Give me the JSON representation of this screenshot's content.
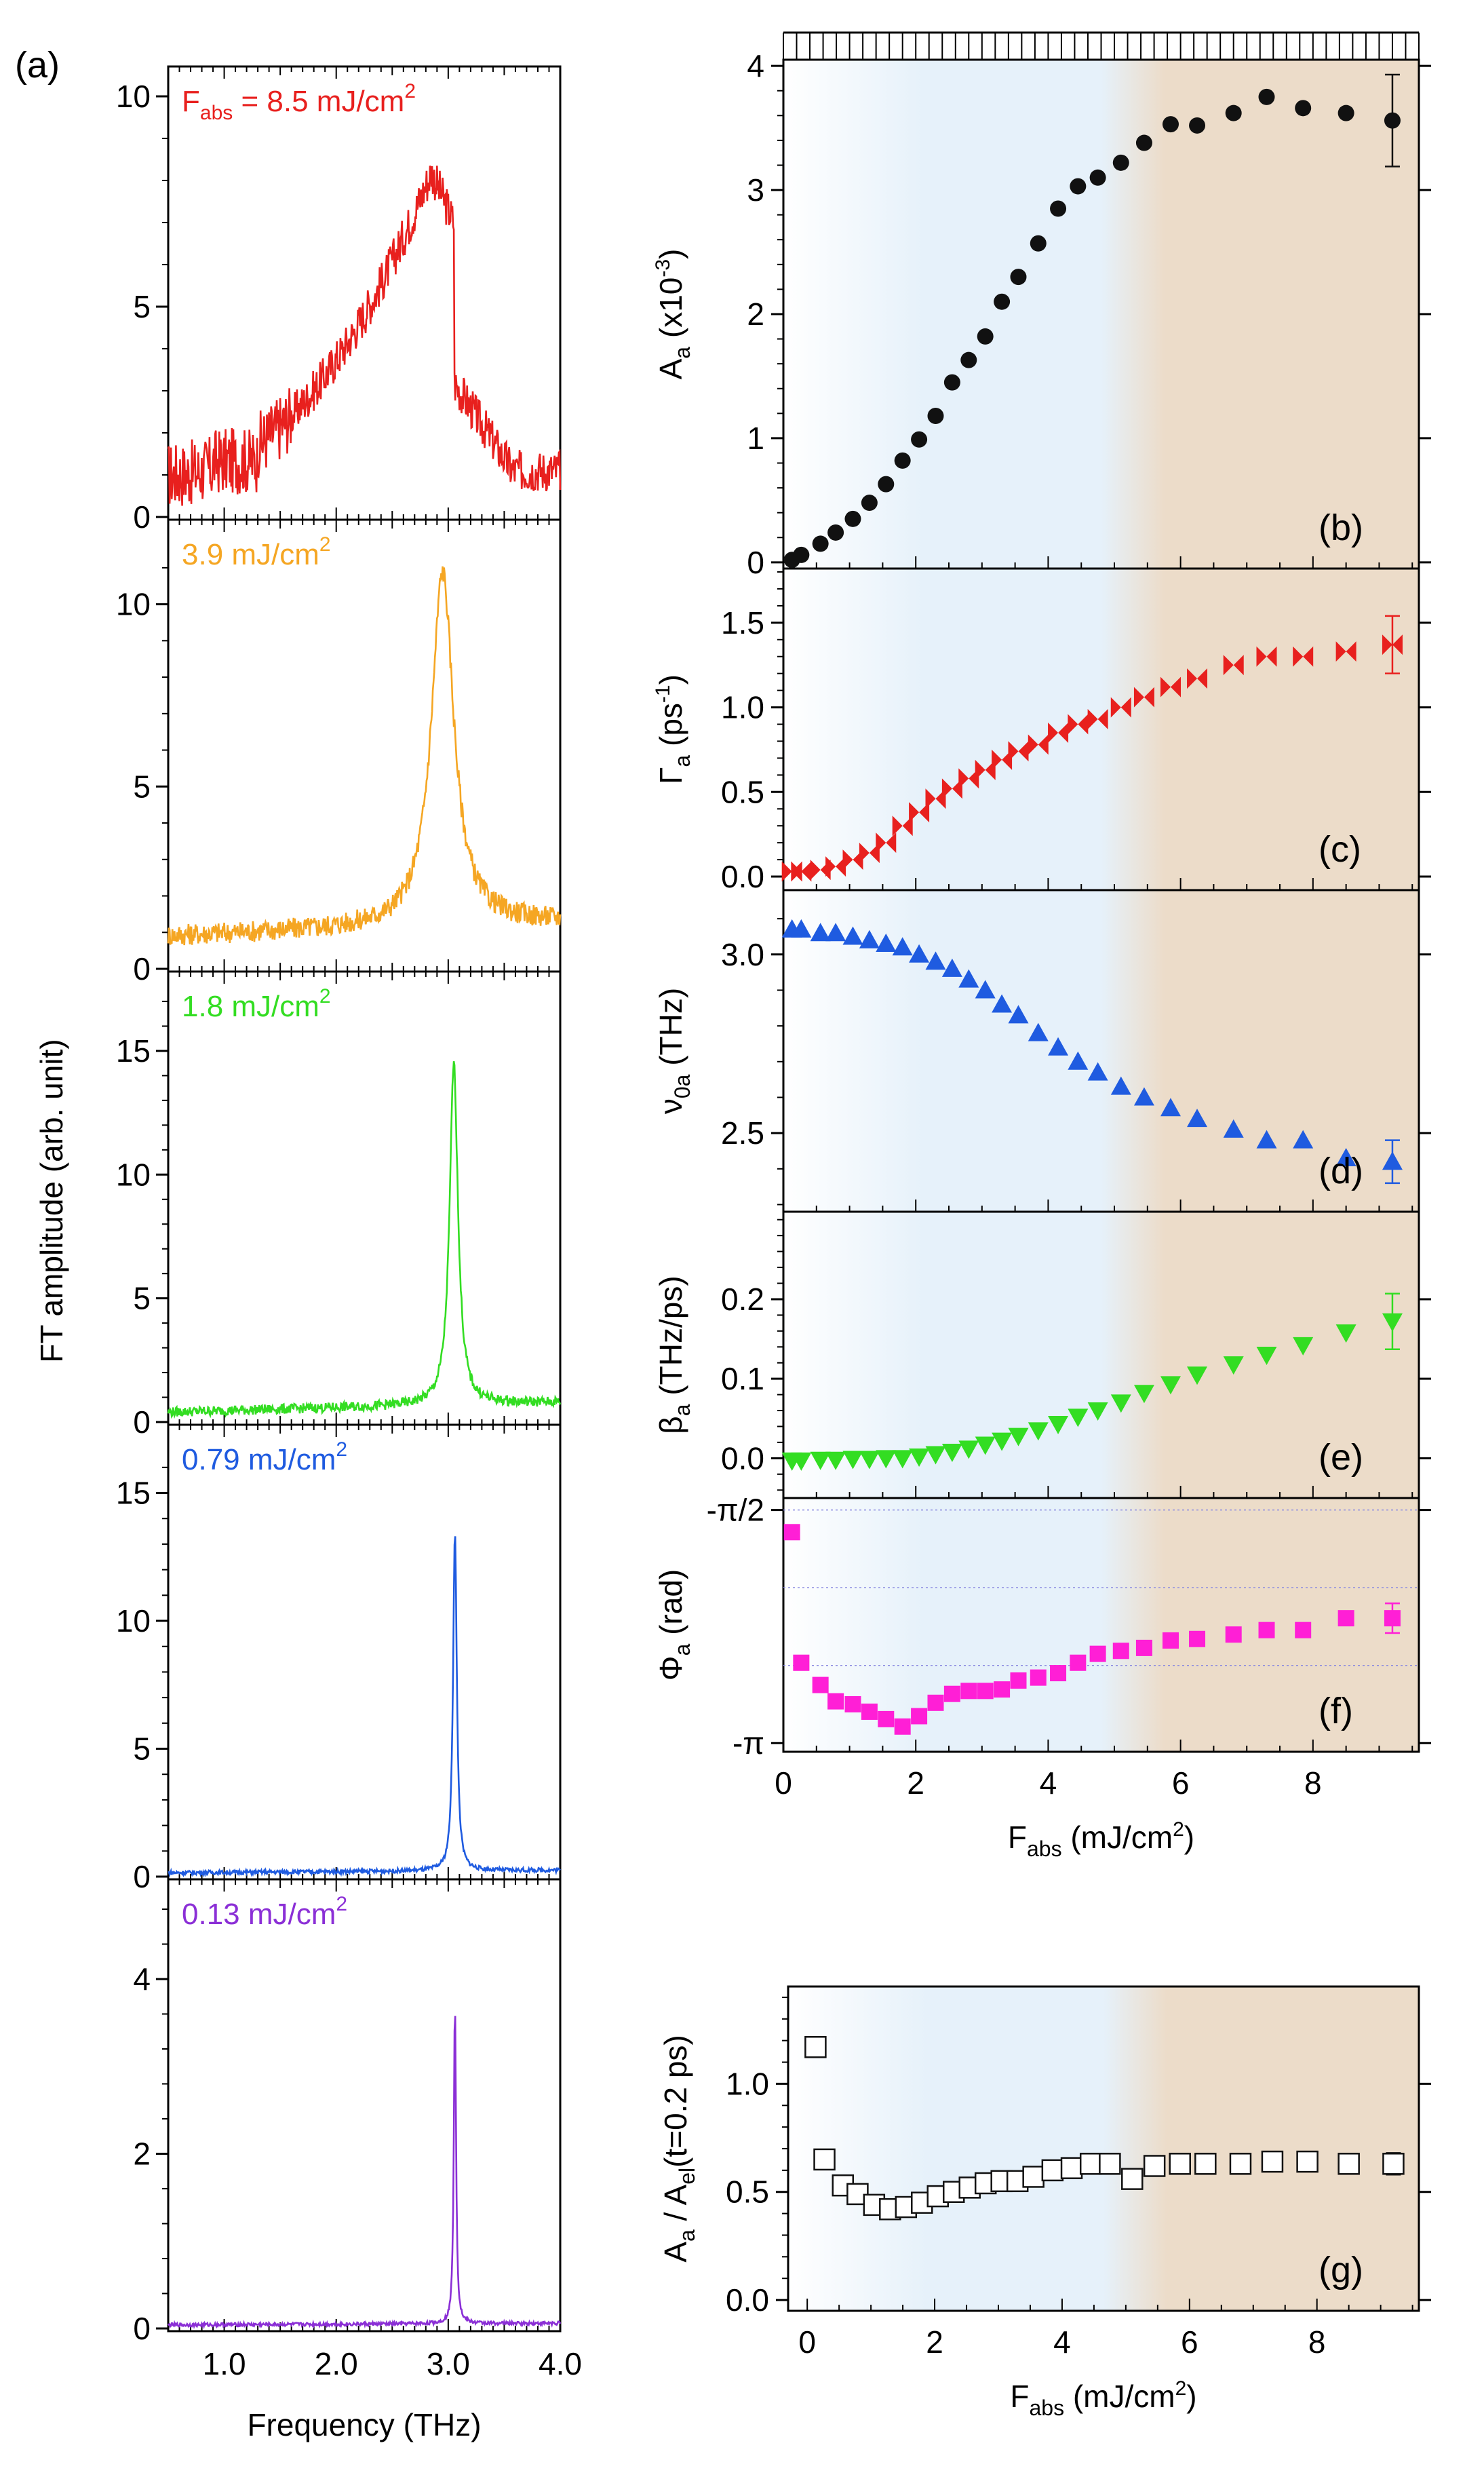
{
  "figure_label": "(a)",
  "colors": {
    "red": "#e8201e",
    "orange": "#f5a623",
    "green": "#33dd22",
    "blue": "#1f5be0",
    "purple": "#8b2fd6",
    "black": "#111111",
    "magenta": "#ff1fd6",
    "blue_tint": "#e6f1fa",
    "tan_tint": "#ecdcc9"
  },
  "chart_data": [
    {
      "id": "a1",
      "type": "line",
      "color_key": "red",
      "annotation": {
        "prefix": "F",
        "sub": "abs",
        "rest": " = 8.5 mJ/cm",
        "sup": "2"
      },
      "xlim": [
        0.5,
        4.0
      ],
      "ylim": [
        0,
        10
      ],
      "yticks": [
        {
          "v": 0,
          "label": "0"
        },
        {
          "v": 5,
          "label": "5"
        },
        {
          "v": 10,
          "label": "10"
        }
      ],
      "shape": {
        "peak_x": 2.85,
        "peak_y": 8.2,
        "base_lo": 1.0,
        "base_hi": 1.2,
        "kind": "asym",
        "noise": 0.5,
        "cut": 3.05,
        "cut_y": 3.2
      }
    },
    {
      "id": "a2",
      "type": "line",
      "color_key": "orange",
      "annotation": {
        "prefix": "",
        "sub": "",
        "rest": "3.9 mJ/cm",
        "sup": "2"
      },
      "xlim": [
        0.5,
        4.0
      ],
      "ylim": [
        0,
        11.5
      ],
      "yticks": [
        {
          "v": 0,
          "label": "0"
        },
        {
          "v": 5,
          "label": "5"
        },
        {
          "v": 10,
          "label": "10"
        }
      ],
      "shape": {
        "peak_x": 2.95,
        "peak_y": 10.9,
        "base_lo": 0.9,
        "base_hi": 1.3,
        "kind": "lorentz",
        "width": 0.12,
        "noise": 0.3
      }
    },
    {
      "id": "a3",
      "type": "line",
      "color_key": "green",
      "annotation": {
        "prefix": "",
        "sub": "",
        "rest": "1.8 mJ/cm",
        "sup": "2"
      },
      "xlim": [
        0.5,
        4.0
      ],
      "ylim": [
        0,
        17
      ],
      "yticks": [
        {
          "v": 0,
          "label": "0"
        },
        {
          "v": 5,
          "label": "5"
        },
        {
          "v": 10,
          "label": "10"
        },
        {
          "v": 15,
          "label": "15"
        }
      ],
      "shape": {
        "peak_x": 3.05,
        "peak_y": 14.5,
        "base_lo": 0.4,
        "base_hi": 0.8,
        "kind": "lorentz",
        "width": 0.045,
        "noise": 0.2
      }
    },
    {
      "id": "a4",
      "type": "line",
      "color_key": "blue",
      "annotation": {
        "prefix": "",
        "sub": "",
        "rest": "0.79 mJ/cm",
        "sup": "2"
      },
      "xlim": [
        0.5,
        4.0
      ],
      "ylim": [
        0,
        16.5
      ],
      "yticks": [
        {
          "v": 0,
          "label": "0"
        },
        {
          "v": 5,
          "label": "5"
        },
        {
          "v": 10,
          "label": "10"
        },
        {
          "v": 15,
          "label": "15"
        }
      ],
      "shape": {
        "peak_x": 3.06,
        "peak_y": 13.5,
        "base_lo": 0.15,
        "base_hi": 0.25,
        "kind": "lorentz",
        "width": 0.02,
        "noise": 0.08
      }
    },
    {
      "id": "a5",
      "type": "line",
      "color_key": "purple",
      "annotation": {
        "prefix": "",
        "sub": "",
        "rest": "0.13 mJ/cm",
        "sup": "2"
      },
      "xlim": [
        0.5,
        4.0
      ],
      "ylim": [
        0,
        4.8
      ],
      "yticks": [
        {
          "v": 0,
          "label": "0"
        },
        {
          "v": 2,
          "label": "2"
        },
        {
          "v": 4,
          "label": "4"
        }
      ],
      "shape": {
        "peak_x": 3.06,
        "peak_y": 3.75,
        "base_lo": 0.04,
        "base_hi": 0.06,
        "kind": "lorentz",
        "width": 0.012,
        "noise": 0.02
      }
    },
    {
      "id": "a_axes",
      "type": "axis",
      "xticks": [
        {
          "v": 1.0,
          "label": "1.0"
        },
        {
          "v": 2.0,
          "label": "2.0"
        },
        {
          "v": 3.0,
          "label": "3.0"
        },
        {
          "v": 4.0,
          "label": "4.0"
        }
      ],
      "xlabel": "Frequency (THz)",
      "ylabel": "FT amplitude (arb. unit)"
    },
    {
      "id": "b",
      "type": "scatter",
      "letter": "(b)",
      "marker": "circle",
      "color_key": "black",
      "ylabel": {
        "main": "A",
        "sub": "a",
        "rest": " (x10",
        "sup": "-3",
        "end": ")"
      },
      "xlim": [
        0,
        9.6
      ],
      "ylim": [
        -0.05,
        4.05
      ],
      "yticks": [
        {
          "v": 0,
          "label": "0"
        },
        {
          "v": 1,
          "label": "1"
        },
        {
          "v": 2,
          "label": "2"
        },
        {
          "v": 3,
          "label": "3"
        },
        {
          "v": 4,
          "label": "4"
        }
      ],
      "x": [
        0.13,
        0.27,
        0.56,
        0.79,
        1.05,
        1.3,
        1.55,
        1.8,
        2.05,
        2.3,
        2.55,
        2.8,
        3.05,
        3.3,
        3.55,
        3.85,
        4.15,
        4.45,
        4.75,
        5.1,
        5.45,
        5.85,
        6.25,
        6.8,
        7.3,
        7.85,
        8.5,
        9.2
      ],
      "y": [
        0.02,
        0.06,
        0.15,
        0.24,
        0.35,
        0.48,
        0.63,
        0.82,
        0.99,
        1.18,
        1.45,
        1.63,
        1.82,
        2.1,
        2.3,
        2.57,
        2.85,
        3.03,
        3.1,
        3.22,
        3.38,
        3.53,
        3.52,
        3.62,
        3.75,
        3.66,
        3.62,
        3.56
      ],
      "err_last": 0.37
    },
    {
      "id": "c",
      "type": "scatter",
      "letter": "(c)",
      "marker": "bowtie",
      "color_key": "red",
      "ylabel": {
        "main": "Γ",
        "sub": "a",
        "rest": " (ps",
        "sup": "-1",
        "end": ")"
      },
      "xlim": [
        0,
        9.6
      ],
      "ylim": [
        -0.08,
        1.82
      ],
      "yticks": [
        {
          "v": 0,
          "label": "0.0"
        },
        {
          "v": 0.5,
          "label": "0.5"
        },
        {
          "v": 1.0,
          "label": "1.0"
        },
        {
          "v": 1.5,
          "label": "1.5"
        }
      ],
      "x": [
        0.13,
        0.27,
        0.56,
        0.79,
        1.05,
        1.3,
        1.55,
        1.8,
        2.05,
        2.3,
        2.55,
        2.8,
        3.05,
        3.3,
        3.55,
        3.85,
        4.15,
        4.45,
        4.75,
        5.1,
        5.45,
        5.85,
        6.25,
        6.8,
        7.3,
        7.85,
        8.5,
        9.2
      ],
      "y": [
        0.03,
        0.03,
        0.04,
        0.06,
        0.1,
        0.14,
        0.2,
        0.3,
        0.38,
        0.46,
        0.52,
        0.58,
        0.63,
        0.69,
        0.74,
        0.78,
        0.85,
        0.9,
        0.93,
        1.0,
        1.06,
        1.12,
        1.17,
        1.25,
        1.3,
        1.3,
        1.33,
        1.37
      ],
      "err_last": 0.17
    },
    {
      "id": "d",
      "type": "scatter",
      "letter": "(d)",
      "marker": "triangle-up",
      "color_key": "blue",
      "ylabel": {
        "main": "ν",
        "sub": "0a",
        "rest": " (THz)",
        "sup": "",
        "end": ""
      },
      "xlim": [
        0,
        9.6
      ],
      "ylim": [
        2.28,
        3.18
      ],
      "yticks": [
        {
          "v": 2.5,
          "label": "2.5"
        },
        {
          "v": 3.0,
          "label": "3.0"
        }
      ],
      "x": [
        0.13,
        0.27,
        0.56,
        0.79,
        1.05,
        1.3,
        1.55,
        1.8,
        2.05,
        2.3,
        2.55,
        2.8,
        3.05,
        3.3,
        3.55,
        3.85,
        4.15,
        4.45,
        4.75,
        5.1,
        5.45,
        5.85,
        6.25,
        6.8,
        7.3,
        7.85,
        8.5,
        9.2
      ],
      "y": [
        3.07,
        3.07,
        3.06,
        3.06,
        3.05,
        3.04,
        3.03,
        3.02,
        3.0,
        2.98,
        2.96,
        2.93,
        2.9,
        2.86,
        2.83,
        2.78,
        2.74,
        2.7,
        2.67,
        2.63,
        2.6,
        2.57,
        2.54,
        2.51,
        2.48,
        2.48,
        2.43,
        2.42
      ],
      "err_last": 0.06
    },
    {
      "id": "e",
      "type": "scatter",
      "letter": "(e)",
      "marker": "triangle-down",
      "color_key": "green",
      "ylabel": {
        "main": "β",
        "sub": "a",
        "rest": " (THz/ps)",
        "sup": "",
        "end": ""
      },
      "xlim": [
        0,
        9.6
      ],
      "ylim": [
        -0.05,
        0.31
      ],
      "yticks": [
        {
          "v": 0,
          "label": "0.0"
        },
        {
          "v": 0.1,
          "label": "0.1"
        },
        {
          "v": 0.2,
          "label": "0.2"
        }
      ],
      "x": [
        0.13,
        0.27,
        0.56,
        0.79,
        1.05,
        1.3,
        1.55,
        1.8,
        2.05,
        2.3,
        2.55,
        2.8,
        3.05,
        3.3,
        3.55,
        3.85,
        4.15,
        4.45,
        4.75,
        5.1,
        5.45,
        5.85,
        6.25,
        6.8,
        7.3,
        7.85,
        8.5,
        9.2
      ],
      "y": [
        -0.003,
        -0.003,
        -0.002,
        -0.002,
        -0.001,
        -0.001,
        0.0,
        0.0,
        0.002,
        0.005,
        0.008,
        0.012,
        0.017,
        0.022,
        0.028,
        0.035,
        0.043,
        0.052,
        0.06,
        0.07,
        0.082,
        0.093,
        0.105,
        0.118,
        0.13,
        0.142,
        0.158,
        0.172
      ],
      "err_last": 0.035
    },
    {
      "id": "f",
      "type": "scatter",
      "letter": "(f)",
      "marker": "square",
      "color_key": "magenta",
      "ylabel": {
        "main": "Φ",
        "sub": "a",
        "rest": " (rad)",
        "sup": "",
        "end": ""
      },
      "xlim": [
        0,
        9.6
      ],
      "ylim": [
        -3.2,
        -1.49
      ],
      "yticks": [
        {
          "v": -1.5708,
          "label": "-π/2"
        },
        {
          "v": -3.1416,
          "label": "-π"
        }
      ],
      "gridlines": [
        -1.5708,
        -2.094,
        -2.618
      ],
      "x": [
        0.13,
        0.27,
        0.56,
        0.79,
        1.05,
        1.3,
        1.55,
        1.8,
        2.05,
        2.3,
        2.55,
        2.8,
        3.05,
        3.3,
        3.55,
        3.85,
        4.15,
        4.45,
        4.75,
        5.1,
        5.45,
        5.85,
        6.25,
        6.8,
        7.3,
        7.85,
        8.5,
        9.2
      ],
      "y": [
        -1.72,
        -2.6,
        -2.75,
        -2.86,
        -2.88,
        -2.93,
        -2.98,
        -3.03,
        -2.96,
        -2.87,
        -2.81,
        -2.79,
        -2.79,
        -2.78,
        -2.72,
        -2.7,
        -2.67,
        -2.6,
        -2.54,
        -2.52,
        -2.5,
        -2.45,
        -2.44,
        -2.41,
        -2.38,
        -2.38,
        -2.3,
        -2.3
      ],
      "err_last": 0.1,
      "xticks": [
        {
          "v": 0,
          "label": "0"
        },
        {
          "v": 2,
          "label": "2"
        },
        {
          "v": 4,
          "label": "4"
        },
        {
          "v": 6,
          "label": "6"
        },
        {
          "v": 8,
          "label": "8"
        }
      ],
      "xlabel": {
        "main": "F",
        "sub": "abs",
        "rest": " (mJ/cm",
        "sup": "2",
        "end": ")"
      }
    },
    {
      "id": "g",
      "type": "scatter",
      "letter": "(g)",
      "marker": "open-square",
      "color_key": "black",
      "ylabel": {
        "main": "A",
        "sub": "a",
        "rest": " / A",
        "sub2": "el",
        "end": "(t=0.2 ps)"
      },
      "xlim": [
        -0.3,
        9.6
      ],
      "ylim": [
        -0.05,
        1.45
      ],
      "yticks": [
        {
          "v": 0,
          "label": "0.0"
        },
        {
          "v": 0.5,
          "label": "0.5"
        },
        {
          "v": 1.0,
          "label": "1.0"
        }
      ],
      "x": [
        0.13,
        0.27,
        0.56,
        0.79,
        1.05,
        1.3,
        1.55,
        1.8,
        2.05,
        2.3,
        2.55,
        2.8,
        3.05,
        3.3,
        3.55,
        3.85,
        4.15,
        4.45,
        4.75,
        5.1,
        5.45,
        5.85,
        6.25,
        6.8,
        7.3,
        7.85,
        8.5,
        9.2
      ],
      "y": [
        1.17,
        0.65,
        0.53,
        0.49,
        0.44,
        0.42,
        0.43,
        0.45,
        0.48,
        0.5,
        0.52,
        0.54,
        0.55,
        0.55,
        0.57,
        0.6,
        0.61,
        0.63,
        0.63,
        0.56,
        0.62,
        0.63,
        0.63,
        0.63,
        0.64,
        0.64,
        0.63,
        0.63
      ],
      "err_last": 0.05,
      "xticks": [
        {
          "v": 0,
          "label": "0"
        },
        {
          "v": 2,
          "label": "2"
        },
        {
          "v": 4,
          "label": "4"
        },
        {
          "v": 6,
          "label": "6"
        },
        {
          "v": 8,
          "label": "8"
        }
      ],
      "xlabel": {
        "main": "F",
        "sub": "abs",
        "rest": " (mJ/cm",
        "sup": "2",
        "end": ")"
      }
    }
  ]
}
